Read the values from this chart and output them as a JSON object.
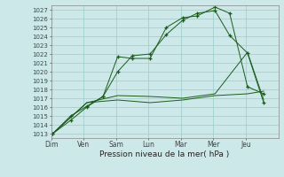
{
  "background_color": "#cce8e8",
  "grid_color": "#99cccc",
  "line_color": "#1a5c1a",
  "xlabel_text": "Pression niveau de la mer( hPa )",
  "x_labels": [
    "Dim",
    "Ven",
    "Sam",
    "Lun",
    "Mar",
    "Mer",
    "Jeu"
  ],
  "ylim": [
    1012.5,
    1027.5
  ],
  "yticks": [
    1013,
    1014,
    1015,
    1016,
    1017,
    1018,
    1019,
    1020,
    1021,
    1022,
    1023,
    1024,
    1025,
    1026,
    1027
  ],
  "xlim": [
    0,
    7
  ],
  "series": [
    {
      "x": [
        0.05,
        0.6,
        1.1,
        1.6,
        2.05,
        2.5,
        3.05,
        3.55,
        4.05,
        4.5,
        5.05,
        5.5,
        6.05,
        6.55
      ],
      "y": [
        1013.0,
        1014.5,
        1016.0,
        1017.2,
        1021.7,
        1021.5,
        1021.5,
        1025.0,
        1026.1,
        1026.3,
        1027.3,
        1026.6,
        1018.3,
        1017.5
      ],
      "marker": "+"
    },
    {
      "x": [
        0.05,
        0.6,
        1.1,
        1.6,
        2.05,
        2.5,
        3.05,
        3.55,
        4.05,
        4.5,
        5.05,
        5.5,
        6.05,
        6.55
      ],
      "y": [
        1013.0,
        1015.0,
        1016.1,
        1017.2,
        1020.0,
        1021.8,
        1022.0,
        1024.2,
        1025.8,
        1026.6,
        1026.9,
        1024.1,
        1022.1,
        1016.5
      ],
      "marker": "+"
    },
    {
      "x": [
        0.05,
        1.1,
        2.05,
        3.05,
        4.05,
        5.05,
        6.05,
        6.55
      ],
      "y": [
        1013.0,
        1016.5,
        1016.8,
        1016.5,
        1016.8,
        1017.3,
        1017.5,
        1017.8
      ],
      "marker": null
    },
    {
      "x": [
        0.05,
        1.1,
        2.05,
        3.05,
        4.05,
        5.05,
        6.05,
        6.55
      ],
      "y": [
        1013.0,
        1016.5,
        1017.3,
        1017.2,
        1017.0,
        1017.5,
        1022.2,
        1016.8
      ],
      "marker": null
    }
  ]
}
